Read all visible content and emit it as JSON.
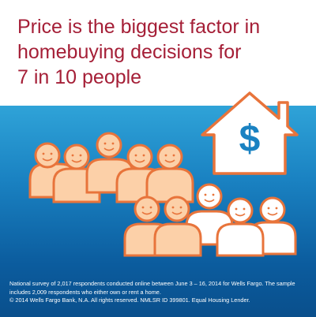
{
  "headline": {
    "line1": "Price is the biggest factor in",
    "line2": "homebuying decisions for",
    "line3": "7 in 10 people"
  },
  "house_icon": {
    "symbol": "$"
  },
  "footnote": {
    "line1": "National survey of 2,017 respondents conducted online between June 3 – 16, 2014 for Wells Fargo. The sample",
    "line2": "includes 2,009 respondents who either own or rent a home.",
    "line3": "© 2014 Wells Fargo Bank, N.A. All rights reserved. NMLSR ID 399801. Equal Housing Lender."
  },
  "colors": {
    "headline": "#a51f37",
    "accent_orange": "#e8743b",
    "person_fill": "#fcd0a8",
    "person_white": "#ffffff",
    "band_top": "#2fa3d8",
    "band_bottom": "#0a4f8c"
  },
  "people": {
    "total": 10,
    "highlighted": 7
  }
}
